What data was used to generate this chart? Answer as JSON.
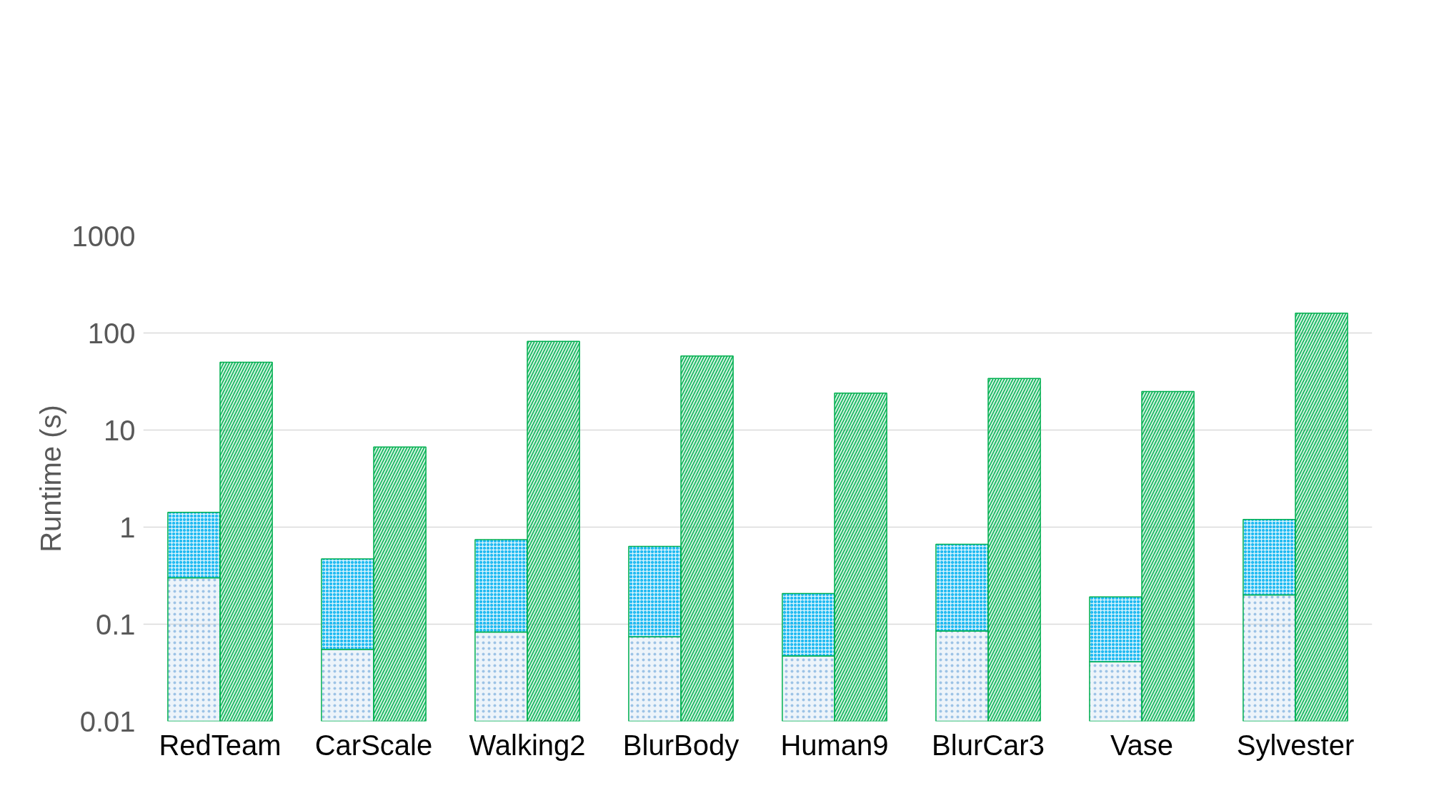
{
  "chart_data": {
    "type": "bar",
    "ylabel": "Runtime (s)",
    "categories": [
      "RedTeam",
      "CarScale",
      "Walking2",
      "BlurBody",
      "Human9",
      "BlurCar3",
      "Vase",
      "Sylvester"
    ],
    "log": true,
    "grid": "y",
    "ylim": [
      0.01,
      1000
    ],
    "yticks": [
      0.01,
      0.1,
      1,
      10,
      100,
      1000
    ],
    "series": [
      {
        "color": "#9dc3e6",
        "values": [
          0.3,
          0.055,
          0.083,
          0.074,
          0.047,
          0.085,
          0.041,
          0.2
        ]
      },
      {
        "color": "#00b0f0",
        "base": [
          0.3,
          0.055,
          0.083,
          0.074,
          0.047,
          0.085,
          0.041,
          0.2
        ],
        "values": [
          1.12,
          0.415,
          0.66,
          0.56,
          0.16,
          0.58,
          0.15,
          1.0
        ]
      },
      {
        "color": "#00b050",
        "values": [
          50,
          6.7,
          82,
          58,
          24,
          34,
          25,
          160
        ]
      }
    ]
  }
}
